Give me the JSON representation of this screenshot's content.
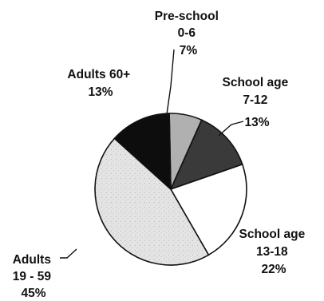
{
  "chart_data": {
    "type": "pie",
    "title": "",
    "categories": [
      "Pre-school",
      "School age",
      "School age",
      "Adults",
      "Adults 60+"
    ],
    "ranges": [
      "0-6",
      "7-12",
      "13-18",
      "19 - 59",
      ""
    ],
    "percent_labels": [
      "7%",
      "13%",
      "22%",
      "45%",
      "13%"
    ],
    "values": [
      7,
      13,
      22,
      45,
      13
    ],
    "slice_colors": [
      "#b0b0b0",
      "#3a3a3a",
      "#ffffff",
      "#e6e6e6",
      "#0d0d0d"
    ]
  }
}
